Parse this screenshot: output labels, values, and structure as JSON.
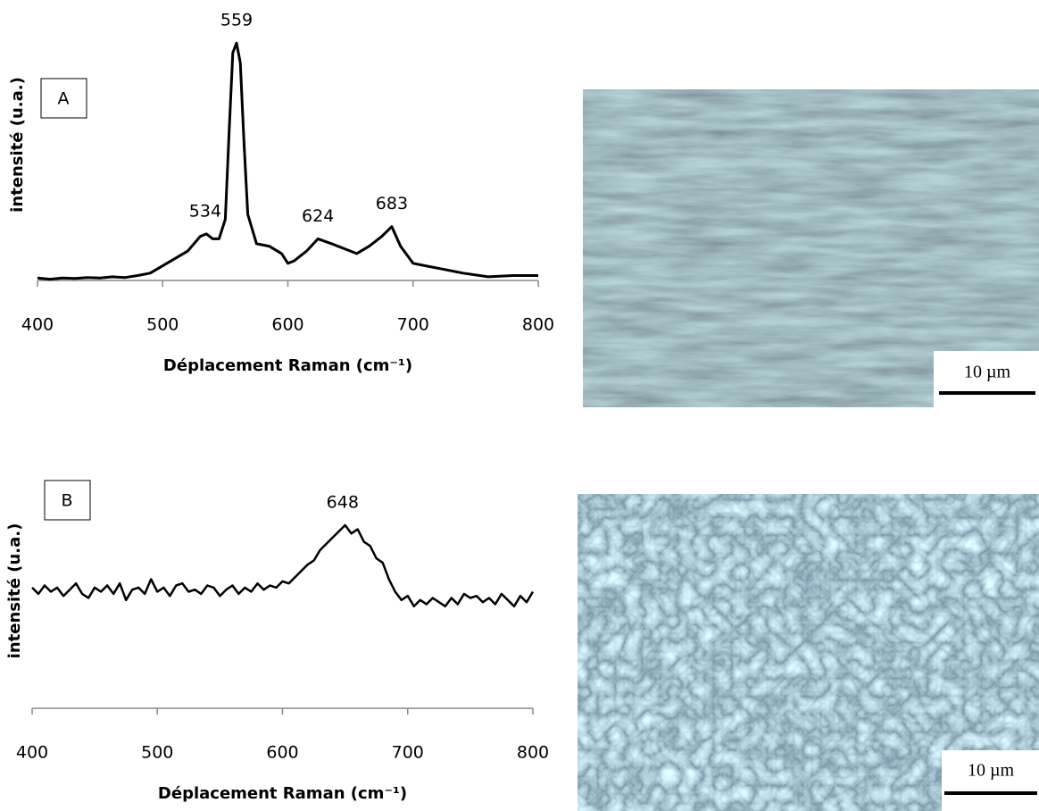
{
  "chart_data": [
    {
      "type": "line",
      "panel": "A",
      "ylabel": "intensité (u.a.)",
      "xlabel": "Déplacement Raman (cm⁻¹)",
      "x": [
        400,
        410,
        420,
        430,
        440,
        450,
        460,
        470,
        480,
        490,
        500,
        510,
        520,
        530,
        535,
        540,
        545,
        550,
        553,
        556,
        559,
        562,
        565,
        568,
        575,
        585,
        595,
        600,
        605,
        615,
        624,
        635,
        645,
        655,
        665,
        675,
        683,
        690,
        700,
        710,
        720,
        740,
        760,
        780,
        800
      ],
      "values": [
        1,
        0.5,
        1,
        0.8,
        1.2,
        1,
        1.5,
        1.2,
        2,
        3,
        6,
        9,
        12,
        18,
        19,
        17,
        17,
        25,
        60,
        93,
        97,
        89,
        56,
        27,
        15,
        14,
        11,
        7,
        8,
        12,
        17,
        15,
        13,
        11,
        14,
        18,
        22,
        14,
        7,
        6,
        5,
        3,
        1.5,
        2,
        2
      ],
      "color": "#000000",
      "xlim": [
        400,
        800
      ],
      "ylim": [
        0,
        100
      ],
      "xticks": [
        400,
        500,
        600,
        700,
        800
      ],
      "annotations": [
        {
          "text": "534",
          "x": 534,
          "y": 19
        },
        {
          "text": "559",
          "x": 559,
          "y": 97
        },
        {
          "text": "624",
          "x": 624,
          "y": 17
        },
        {
          "text": "683",
          "x": 683,
          "y": 22
        }
      ]
    },
    {
      "type": "line",
      "panel": "B",
      "ylabel": "intensité (u.a.)",
      "xlabel": "Déplacement Raman (cm⁻¹)",
      "x": [
        400,
        405,
        410,
        415,
        420,
        425,
        430,
        435,
        440,
        445,
        450,
        455,
        460,
        465,
        470,
        475,
        480,
        485,
        490,
        495,
        500,
        505,
        510,
        515,
        520,
        525,
        530,
        535,
        540,
        545,
        550,
        555,
        560,
        565,
        570,
        575,
        580,
        585,
        590,
        595,
        600,
        605,
        610,
        615,
        620,
        625,
        630,
        635,
        640,
        645,
        650,
        655,
        660,
        665,
        670,
        675,
        680,
        685,
        690,
        695,
        700,
        705,
        710,
        715,
        720,
        725,
        730,
        735,
        740,
        745,
        750,
        755,
        760,
        765,
        770,
        775,
        780,
        785,
        790,
        795,
        800
      ],
      "values": [
        58,
        55,
        59,
        56,
        58,
        54,
        57,
        60,
        55,
        53,
        58,
        56,
        59,
        55,
        60,
        52,
        57,
        58,
        55,
        62,
        56,
        58,
        54,
        59,
        60,
        56,
        57,
        55,
        59,
        58,
        54,
        57,
        59,
        55,
        58,
        56,
        60,
        57,
        59,
        58,
        61,
        60,
        63,
        66,
        69,
        71,
        76,
        79,
        82,
        85,
        88,
        84,
        86,
        80,
        78,
        72,
        70,
        62,
        56,
        52,
        54,
        49,
        52,
        50,
        53,
        51,
        49,
        53,
        50,
        55,
        53,
        54,
        51,
        53,
        50,
        55,
        52,
        49,
        54,
        51,
        56
      ],
      "color": "#000000",
      "xlim": [
        400,
        800
      ],
      "ylim": [
        0,
        100
      ],
      "xticks": [
        400,
        500,
        600,
        700,
        800
      ],
      "annotations": [
        {
          "text": "648",
          "x": 648,
          "y": 88
        }
      ]
    }
  ],
  "micrographs": [
    {
      "scale_bar": "10 µm"
    },
    {
      "scale_bar": "10 µm"
    }
  ]
}
